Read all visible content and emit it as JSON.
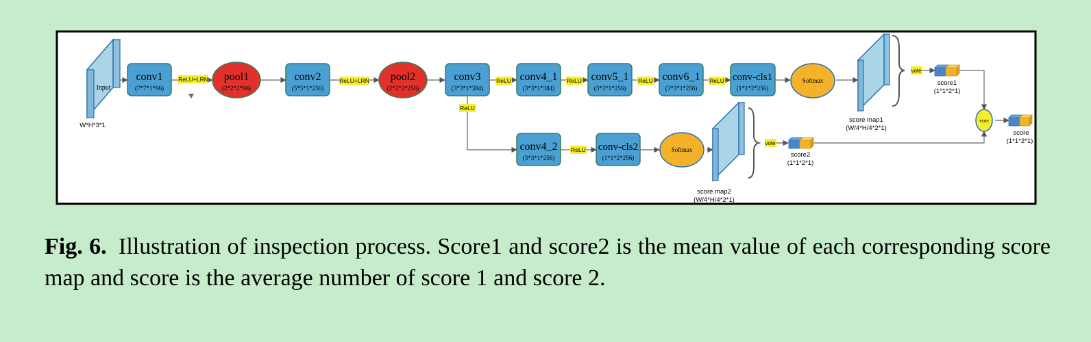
{
  "figure": {
    "input": {
      "label": "Input",
      "dims": "W*H*3*1"
    },
    "nodes": {
      "conv1": {
        "label": "conv1",
        "dims": "(7*7*1*96)"
      },
      "pool1": {
        "label": "pool1",
        "dims": "(2*2*2*96)"
      },
      "conv2": {
        "label": "conv2",
        "dims": "(5*5*1*256)"
      },
      "pool2": {
        "label": "pool2",
        "dims": "(2*2*2*256)"
      },
      "conv3": {
        "label": "conv3",
        "dims": "(3*3*1*384)"
      },
      "conv4_1": {
        "label": "conv4_1",
        "dims": "(3*3*1*384)"
      },
      "conv5_1": {
        "label": "conv5_1",
        "dims": "(3*3*1*256)"
      },
      "conv6_1": {
        "label": "conv6_1",
        "dims": "(3*3*1*256)"
      },
      "conv_cls1": {
        "label": "conv-cls1",
        "dims": "(1*1*2*256)"
      },
      "conv4_2": {
        "label": "conv4_2",
        "dims": "(3*3*1*256)"
      },
      "conv_cls2": {
        "label": "conv-cls2",
        "dims": "(1*1*2*256)"
      },
      "softmax1": {
        "label": "Softmax"
      },
      "softmax2": {
        "label": "Softmax"
      },
      "vote_node": {
        "label": "vote"
      }
    },
    "edge_labels": {
      "relu_lrn_1": "ReLU+LRN",
      "relu_lrn_2": "ReLU+LRN",
      "relu_c3_c41": "ReLU",
      "relu_c41_c51": "ReLU",
      "relu_c51_c61": "ReLU",
      "relu_c61_cls1": "ReLU",
      "relu_c3_branch": "ReLU",
      "relu_c42_cls2": "ReLU",
      "vote_top": "vote",
      "vote_bottom": "vote"
    },
    "outputs": {
      "score_map1": {
        "label": "score map1",
        "dims": "(W/4*H/4*2*1)"
      },
      "score_map2": {
        "label": "score map2",
        "dims": "(W/4*H/4*2*1)"
      },
      "score1": {
        "label": "score1",
        "dims": "(1*1*2*1)"
      },
      "score2": {
        "label": "score2",
        "dims": "(1*1*2*1)"
      },
      "score": {
        "label": "score",
        "dims": "(1*1*2*1)"
      }
    },
    "colors": {
      "conv": "#4a9fd3",
      "pool": "#e2312b",
      "softmax": "#f3b229",
      "vote_node": "#f5ee2a",
      "edge_label_bg": "#f5ee2a",
      "map": "#a9d5e6",
      "background": "#c6eccc"
    }
  },
  "caption": {
    "label": "Fig. 6.",
    "text": "Illustration of inspection process. Score1 and score2 is the mean value of each corresponding score map and score is the average number of score 1 and score 2."
  }
}
